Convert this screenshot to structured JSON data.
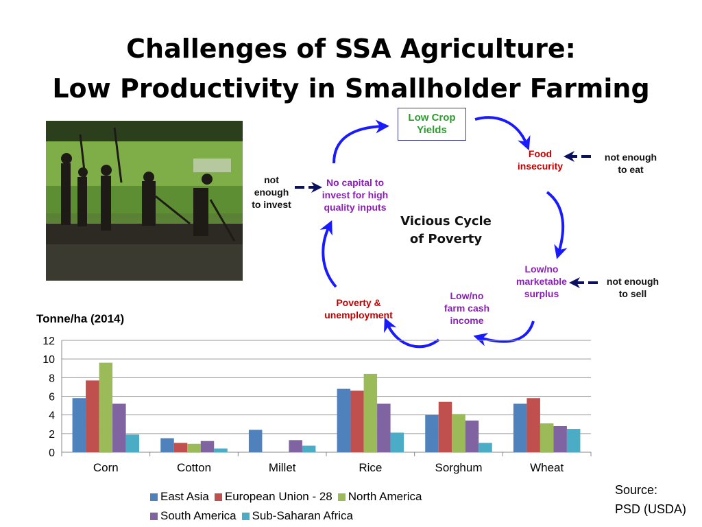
{
  "title": {
    "line1": "Challenges of SSA Agriculture:",
    "line2": "Low Productivity in Smallholder Farming"
  },
  "cycle": {
    "center_line1": "Vicious Cycle",
    "center_line2": "of Poverty",
    "nodes": {
      "low_crop_yields": "Low Crop Yields",
      "food_insecurity": [
        "Food",
        "insecurity"
      ],
      "marketable_surplus": [
        "Low/no",
        "marketable",
        "surplus"
      ],
      "farm_cash_income": [
        "Low/no",
        "farm cash",
        "income"
      ],
      "poverty_unemployment": [
        "Poverty &",
        "unemployment"
      ],
      "no_capital": [
        "No capital to",
        "invest for high",
        "quality inputs"
      ]
    },
    "external": {
      "not_enough_to_eat": [
        "not enough",
        "to eat"
      ],
      "not_enough_to_sell": [
        "not enough",
        "to sell"
      ],
      "not_enough_to_invest": [
        "not",
        "enough",
        "to invest"
      ]
    },
    "colors": {
      "arrow": "#1a1aff",
      "dash_arrow": "#0b1060"
    }
  },
  "photo": {
    "icon": "farmers-field-photo"
  },
  "chart_data": {
    "type": "bar",
    "title": "Tonne/ha (2014)",
    "categories": [
      "Corn",
      "Cotton",
      "Millet",
      "Rice",
      "Sorghum",
      "Wheat"
    ],
    "ylim": [
      0,
      12
    ],
    "yticks": [
      0,
      2,
      4,
      6,
      8,
      10,
      12
    ],
    "grid": true,
    "legend_position": "bottom",
    "series": [
      {
        "name": "East Asia",
        "color": "#4f81bd",
        "values": [
          5.8,
          1.5,
          2.4,
          6.8,
          4.0,
          5.2
        ]
      },
      {
        "name": "European Union - 28",
        "color": "#c0504d",
        "values": [
          7.7,
          1.0,
          null,
          6.6,
          5.4,
          5.8
        ]
      },
      {
        "name": "North America",
        "color": "#9bbb59",
        "values": [
          9.6,
          0.9,
          null,
          8.4,
          4.1,
          3.1
        ]
      },
      {
        "name": "South America",
        "color": "#8064a2",
        "values": [
          5.2,
          1.2,
          1.3,
          5.2,
          3.4,
          2.8
        ]
      },
      {
        "name": "Sub-Saharan Africa",
        "color": "#4bacc6",
        "values": [
          1.9,
          0.4,
          0.7,
          2.1,
          1.0,
          2.5
        ]
      }
    ]
  },
  "source": {
    "line1": "Source:",
    "line2": "PSD (USDA)"
  }
}
